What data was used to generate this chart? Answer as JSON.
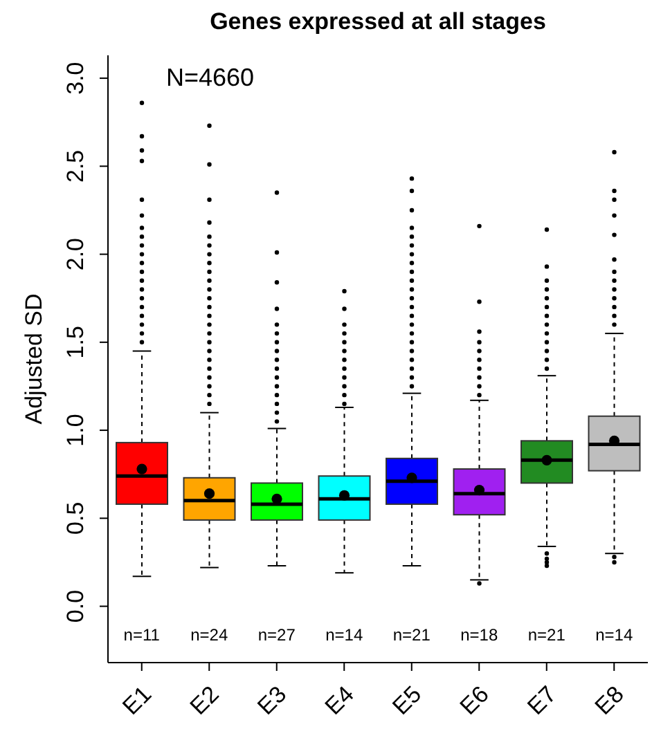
{
  "chart_data": {
    "type": "box",
    "title": "Genes expressed at all stages",
    "ylabel": "Adjusted SD",
    "categories": [
      "E1",
      "E2",
      "E3",
      "E4",
      "E5",
      "E6",
      "E7",
      "E8"
    ],
    "colors": [
      "#ff0000",
      "#ffa500",
      "#00ff00",
      "#00ffff",
      "#0000ff",
      "#a020f0",
      "#228b22",
      "#bebebe"
    ],
    "boxes": [
      {
        "low": 0.17,
        "q1": 0.58,
        "median": 0.74,
        "q3": 0.93,
        "high": 1.45,
        "mean": 0.78,
        "outliers": [
          2.86,
          2.67,
          2.59,
          2.53,
          2.31,
          2.22,
          2.15,
          2.1,
          2.05,
          2.0,
          1.95,
          1.9,
          1.85,
          1.8,
          1.75,
          1.7,
          1.65,
          1.6,
          1.55,
          1.5
        ]
      },
      {
        "low": 0.22,
        "q1": 0.49,
        "median": 0.6,
        "q3": 0.73,
        "high": 1.1,
        "mean": 0.64,
        "outliers": [
          2.73,
          2.51,
          2.31,
          2.18,
          2.1,
          2.05,
          2.0,
          1.95,
          1.9,
          1.85,
          1.8,
          1.75,
          1.7,
          1.65,
          1.6,
          1.55,
          1.5,
          1.45,
          1.4,
          1.35,
          1.3,
          1.25,
          1.2,
          1.15
        ]
      },
      {
        "low": 0.23,
        "q1": 0.49,
        "median": 0.58,
        "q3": 0.7,
        "high": 1.01,
        "mean": 0.61,
        "outliers": [
          2.35,
          2.01,
          1.84,
          1.69,
          1.6,
          1.55,
          1.5,
          1.45,
          1.4,
          1.35,
          1.3,
          1.25,
          1.2,
          1.15,
          1.1,
          1.05
        ]
      },
      {
        "low": 0.19,
        "q1": 0.49,
        "median": 0.61,
        "q3": 0.74,
        "high": 1.13,
        "mean": 0.63,
        "outliers": [
          1.79,
          1.69,
          1.6,
          1.55,
          1.5,
          1.45,
          1.4,
          1.35,
          1.3,
          1.25,
          1.2,
          1.15
        ]
      },
      {
        "low": 0.23,
        "q1": 0.58,
        "median": 0.71,
        "q3": 0.84,
        "high": 1.21,
        "mean": 0.73,
        "outliers": [
          2.43,
          2.36,
          2.25,
          2.15,
          2.1,
          2.05,
          2.0,
          1.95,
          1.9,
          1.85,
          1.8,
          1.75,
          1.7,
          1.65,
          1.6,
          1.55,
          1.5,
          1.45,
          1.4,
          1.35,
          1.3,
          1.25
        ]
      },
      {
        "low": 0.15,
        "q1": 0.52,
        "median": 0.64,
        "q3": 0.78,
        "high": 1.17,
        "mean": 0.66,
        "outliers": [
          2.16,
          1.73,
          1.56,
          1.5,
          1.45,
          1.4,
          1.35,
          1.3,
          1.25,
          1.2,
          0.13
        ]
      },
      {
        "low": 0.34,
        "q1": 0.7,
        "median": 0.83,
        "q3": 0.94,
        "high": 1.31,
        "mean": 0.83,
        "outliers": [
          2.14,
          1.93,
          1.85,
          1.8,
          1.75,
          1.7,
          1.65,
          1.6,
          1.55,
          1.5,
          1.45,
          1.4,
          1.35,
          0.3,
          0.27,
          0.25,
          0.23
        ]
      },
      {
        "low": 0.3,
        "q1": 0.77,
        "median": 0.92,
        "q3": 1.08,
        "high": 1.55,
        "mean": 0.94,
        "outliers": [
          2.58,
          2.36,
          2.31,
          2.22,
          2.11,
          1.97,
          1.9,
          1.85,
          1.8,
          1.75,
          1.7,
          1.65,
          1.6,
          0.28,
          0.25
        ]
      }
    ],
    "ylim": [
      -0.32,
      3.13
    ],
    "yticks": [
      {
        "value": 0,
        "label": "0.0"
      },
      {
        "value": 0.5,
        "label": "0.5"
      },
      {
        "value": 1,
        "label": "1.0"
      },
      {
        "value": 1.5,
        "label": "1.5"
      },
      {
        "value": 2,
        "label": "2.0"
      },
      {
        "value": 2.5,
        "label": "2.5"
      },
      {
        "value": 3,
        "label": "3.0"
      }
    ],
    "annotations": [
      "N=4660",
      "n=11",
      "n=24",
      "n=27",
      "n=14",
      "n=21",
      "n=18",
      "n=21",
      "n=14"
    ]
  }
}
